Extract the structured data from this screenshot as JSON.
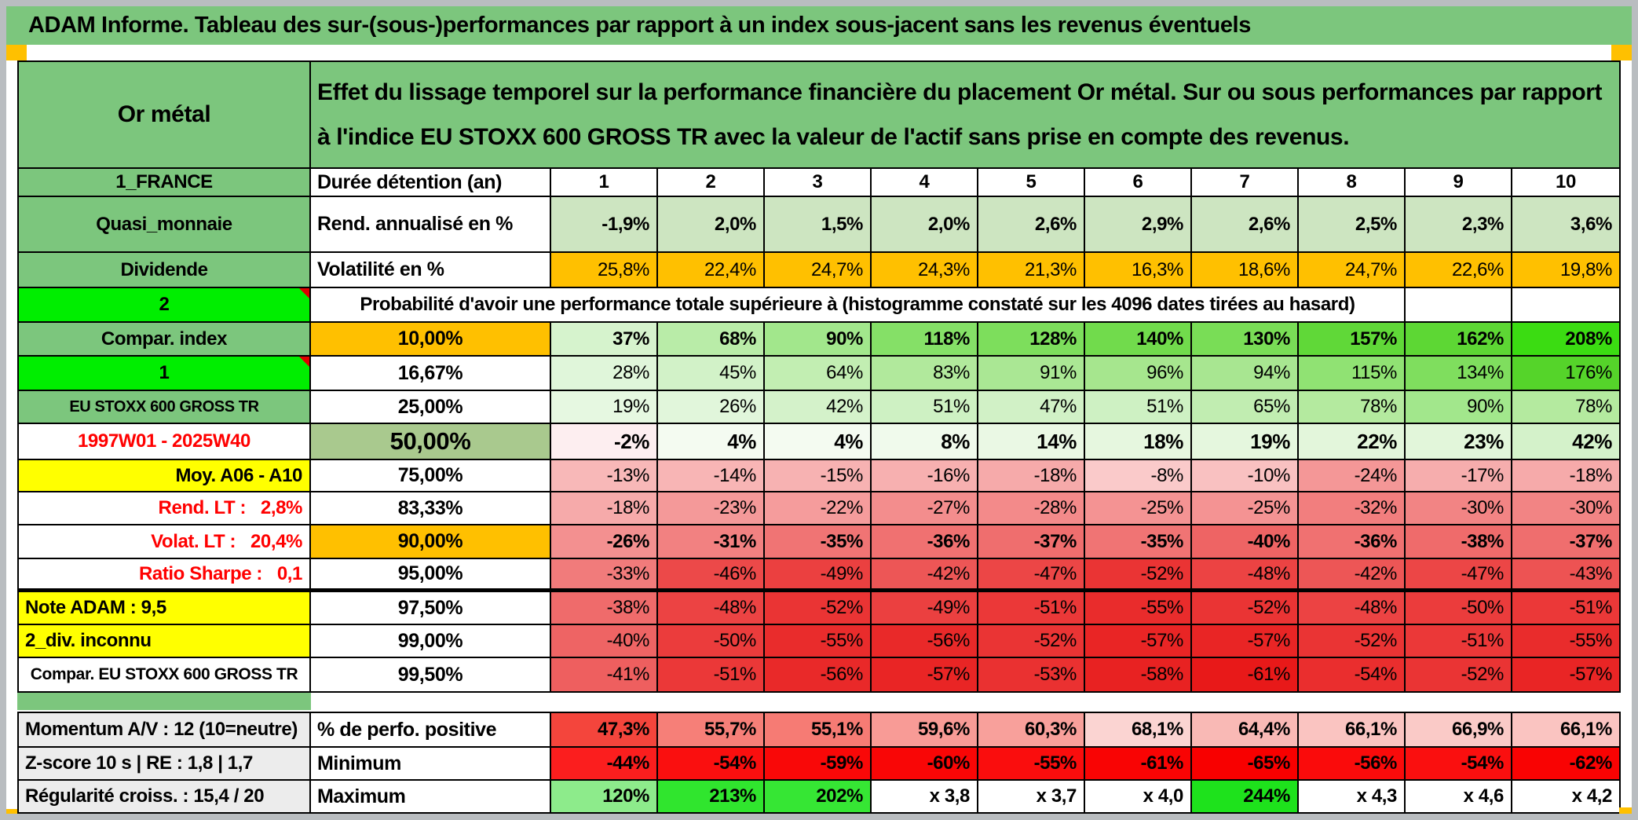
{
  "title": "ADAM Informe. Tableau des sur-(sous-)performances par rapport à un index sous-jacent sans les revenus éventuels",
  "header": {
    "asset_label": "Or métal",
    "description": "Effet du lissage temporel sur la performance financière du placement Or métal. Sur ou sous performances par rapport à l'indice EU STOXX 600 GROSS TR avec la valeur de l'actif sans prise en compte des revenus."
  },
  "colors": {
    "band_green": "#7cc67d",
    "bright_green": "#00ee00",
    "sage_green": "#a9c98e",
    "light_green_row": "#cde5c1",
    "orange": "#ffc000",
    "yellow": "#ffff00",
    "gray_label": "#ececec",
    "red_text": "#ff0000",
    "frame_gray": "#b9bdc0"
  },
  "table": {
    "prob_header": "Probabilité d'avoir une performance totale supérieure à (histogramme constaté sur les 4096 dates tirées au hasard)",
    "rows": [
      {
        "label": {
          "t": "1_FRANCE",
          "bg": "green"
        },
        "head": {
          "t": "Durée détention (an)",
          "align": "left"
        },
        "cells": [
          "1",
          "2",
          "3",
          "4",
          "5",
          "6",
          "7",
          "8",
          "9",
          "10"
        ],
        "bg": "#ffffff",
        "bold": true,
        "align": "center"
      },
      {
        "label": {
          "t": "Quasi_monnaie",
          "bg": "green"
        },
        "head": {
          "t": "Rend. annualisé en %",
          "align": "left"
        },
        "cells": [
          "-1,9%",
          "2,0%",
          "1,5%",
          "2,0%",
          "2,6%",
          "2,9%",
          "2,6%",
          "2,5%",
          "2,3%",
          "3,6%"
        ],
        "bg": "#cde5c1",
        "bold": true
      },
      {
        "label": {
          "t": "Dividende",
          "bg": "green"
        },
        "head": {
          "t": "Volatilité en %",
          "align": "left"
        },
        "cells": [
          "25,8%",
          "22,4%",
          "24,7%",
          "24,3%",
          "21,3%",
          "16,3%",
          "18,6%",
          "24,7%",
          "22,6%",
          "19,8%"
        ],
        "bg": "#ffc000",
        "bold": false
      },
      {
        "type": "prob",
        "label": {
          "t": "2",
          "bg": "bright",
          "corner": true
        }
      },
      {
        "label": {
          "t": "Compar. index",
          "bg": "green"
        },
        "head": {
          "t": "10,00%",
          "bg": "orange"
        },
        "cells": [
          "37%",
          "68%",
          "90%",
          "118%",
          "128%",
          "140%",
          "130%",
          "157%",
          "162%",
          "208%"
        ],
        "bold": true,
        "bgs": [
          "#d6f3cd",
          "#b9eca8",
          "#a2e78c",
          "#85e067",
          "#7dde5c",
          "#71db4c",
          "#79dd56",
          "#60d838",
          "#5dd734",
          "#3bdc12"
        ]
      },
      {
        "label": {
          "t": "1",
          "bg": "bright",
          "corner": true
        },
        "head": {
          "t": "16,67%"
        },
        "cells": [
          "28%",
          "45%",
          "64%",
          "83%",
          "91%",
          "96%",
          "94%",
          "115%",
          "134%",
          "176%"
        ],
        "bold": false,
        "bgs": [
          "#e0f6da",
          "#d2f2c8",
          "#c2eeb2",
          "#b1e99c",
          "#aae794",
          "#a6e68e",
          "#a8e691",
          "#90e273",
          "#7fde5e",
          "#55d42a"
        ]
      },
      {
        "label": {
          "t": "EU STOXX 600 GROSS TR",
          "bg": "green",
          "fs": 20
        },
        "head": {
          "t": "25,00%"
        },
        "cells": [
          "19%",
          "26%",
          "42%",
          "51%",
          "47%",
          "51%",
          "65%",
          "78%",
          "90%",
          "78%"
        ],
        "bold": false,
        "bgs": [
          "#e6f8e1",
          "#e1f6db",
          "#d4f2ca",
          "#cef1c3",
          "#d1f1c6",
          "#cef1c3",
          "#c1edb1",
          "#b4ea9f",
          "#a2e78c",
          "#b4ea9f"
        ]
      },
      {
        "label": {
          "t": "1997W01 - 2025W40",
          "bg": "white",
          "color": "#ff0000"
        },
        "head": {
          "t": "50,00%",
          "bg": "sage",
          "fs": 31
        },
        "cells": [
          "-2%",
          "4%",
          "4%",
          "8%",
          "14%",
          "18%",
          "19%",
          "22%",
          "23%",
          "42%"
        ],
        "bold": true,
        "fs": 26,
        "bgs": [
          "#fdeef0",
          "#f4fbf1",
          "#f4fbf1",
          "#f0faec",
          "#eaf8e4",
          "#e6f7df",
          "#e5f7de",
          "#e3f6db",
          "#e2f6da",
          "#d4f2ca"
        ]
      },
      {
        "label": {
          "t": "Moy. A06 - A10",
          "bg": "yellow",
          "align": "right"
        },
        "head": {
          "t": "75,00%"
        },
        "cells": [
          "-13%",
          "-14%",
          "-15%",
          "-16%",
          "-18%",
          "-8%",
          "-10%",
          "-24%",
          "-17%",
          "-18%"
        ],
        "bold": false,
        "bgs": [
          "#f8b8b8",
          "#f8b5b5",
          "#f7b2b2",
          "#f7b0b0",
          "#f6aaaa",
          "#facaca",
          "#f9c1c1",
          "#f49797",
          "#f6adad",
          "#f6aaaa"
        ]
      },
      {
        "label": {
          "t": "Rend. LT :   2,8%",
          "bg": "white",
          "color": "#ff0000",
          "align": "right"
        },
        "head": {
          "t": "83,33%"
        },
        "cells": [
          "-18%",
          "-23%",
          "-22%",
          "-27%",
          "-28%",
          "-25%",
          "-25%",
          "-32%",
          "-30%",
          "-30%"
        ],
        "bold": false,
        "bgs": [
          "#f6aaaa",
          "#f49999",
          "#f59c9c",
          "#f38d8d",
          "#f38a8a",
          "#f49393",
          "#f49393",
          "#f27e7e",
          "#f28484",
          "#f28484"
        ]
      },
      {
        "label": {
          "t": "Volat. LT :   20,4%",
          "bg": "white",
          "color": "#ff0000",
          "align": "right"
        },
        "head": {
          "t": "90,00%",
          "bg": "orange"
        },
        "cells": [
          "-26%",
          "-31%",
          "-35%",
          "-36%",
          "-37%",
          "-35%",
          "-40%",
          "-36%",
          "-38%",
          "-37%"
        ],
        "bold": true,
        "bgs": [
          "#f39090",
          "#f28181",
          "#f07474",
          "#f07171",
          "#ef6e6e",
          "#f07474",
          "#ee6464",
          "#f07171",
          "#ef6b6b",
          "#ef6e6e"
        ]
      },
      {
        "label": {
          "t": "Ratio Sharpe :   0,1",
          "bg": "white",
          "color": "#ff0000",
          "align": "right"
        },
        "head": {
          "t": "95,00%"
        },
        "cells": [
          "-33%",
          "-46%",
          "-49%",
          "-42%",
          "-47%",
          "-52%",
          "-48%",
          "-42%",
          "-47%",
          "-43%"
        ],
        "bold": false,
        "thick": true,
        "bgs": [
          "#f17b7b",
          "#ec4949",
          "#eb4040",
          "#ed5656",
          "#ec4646",
          "#ea3434",
          "#ec4343",
          "#ed5656",
          "#ec4646",
          "#ed5353"
        ]
      },
      {
        "label": {
          "t": "Note ADAM : 9,5",
          "bg": "yellow",
          "align": "left"
        },
        "head": {
          "t": "97,50%"
        },
        "cells": [
          "-38%",
          "-48%",
          "-52%",
          "-49%",
          "-51%",
          "-55%",
          "-52%",
          "-48%",
          "-50%",
          "-51%"
        ],
        "bold": false,
        "bgs": [
          "#ef6b6b",
          "#ec4343",
          "#ea3434",
          "#eb4040",
          "#eb3838",
          "#e92c2c",
          "#ea3434",
          "#ec4343",
          "#eb3c3c",
          "#eb3838"
        ]
      },
      {
        "label": {
          "t": "2_div. inconnu",
          "bg": "yellow",
          "align": "left"
        },
        "head": {
          "t": "99,00%"
        },
        "cells": [
          "-40%",
          "-50%",
          "-55%",
          "-56%",
          "-52%",
          "-57%",
          "-57%",
          "-52%",
          "-51%",
          "-55%"
        ],
        "bold": false,
        "bgs": [
          "#ee6464",
          "#eb3c3c",
          "#e92c2c",
          "#e92929",
          "#ea3434",
          "#e92525",
          "#e92525",
          "#ea3434",
          "#eb3838",
          "#e92c2c"
        ]
      },
      {
        "label": {
          "t": "Compar. EU STOXX 600 GROSS TR",
          "bg": "white",
          "fs": 21
        },
        "head": {
          "t": "99,50%"
        },
        "cells": [
          "-41%",
          "-51%",
          "-56%",
          "-57%",
          "-53%",
          "-58%",
          "-61%",
          "-54%",
          "-52%",
          "-57%"
        ],
        "bold": false,
        "bgs": [
          "#ee5f5f",
          "#eb3838",
          "#e92929",
          "#e92525",
          "#ea3131",
          "#e82222",
          "#e81919",
          "#ea2e2e",
          "#ea3434",
          "#e92525"
        ]
      },
      {
        "label": {
          "t": "Momentum A/V : 12 (10=neutre)",
          "bg": "gray",
          "align": "left"
        },
        "head": {
          "t": "% de perfo. positive",
          "align": "left"
        },
        "cells": [
          "47,3%",
          "55,7%",
          "55,1%",
          "59,6%",
          "60,3%",
          "68,1%",
          "64,4%",
          "66,1%",
          "66,9%",
          "66,1%"
        ],
        "bold": true,
        "bgs": [
          "#f4453c",
          "#f67f78",
          "#f67b74",
          "#f89b96",
          "#f8a09b",
          "#fbd4d2",
          "#f9b9b5",
          "#fac4c1",
          "#facac7",
          "#fac4c1"
        ]
      },
      {
        "label": {
          "t": "Z-score 10 s | RE : 1,8 | 1,7",
          "bg": "gray",
          "align": "left"
        },
        "head": {
          "t": "Minimum",
          "align": "left"
        },
        "cells": [
          "-44%",
          "-54%",
          "-59%",
          "-60%",
          "-55%",
          "-61%",
          "-65%",
          "-56%",
          "-54%",
          "-62%"
        ],
        "bold": true,
        "bgs": [
          "#fb1e1e",
          "#fa0f0f",
          "#f90808",
          "#f90606",
          "#fa0d0d",
          "#f90404",
          "#f80000",
          "#fa0b0b",
          "#fa0f0f",
          "#f90303"
        ]
      },
      {
        "label": {
          "t": "Régularité croiss. : 15,4 / 20",
          "bg": "gray",
          "align": "left"
        },
        "head": {
          "t": "Maximum",
          "align": "left"
        },
        "cells": [
          "120%",
          "213%",
          "202%",
          "x 3,8",
          "x 3,7",
          "x 4,0",
          "244%",
          "x 4,3",
          "x 4,6",
          "x 4,2"
        ],
        "bold": true,
        "bgs": [
          "#8deb8b",
          "#30e52e",
          "#36e634",
          "#ffffff",
          "#ffffff",
          "#ffffff",
          "#1ee21c",
          "#ffffff",
          "#ffffff",
          "#ffffff"
        ]
      }
    ]
  }
}
